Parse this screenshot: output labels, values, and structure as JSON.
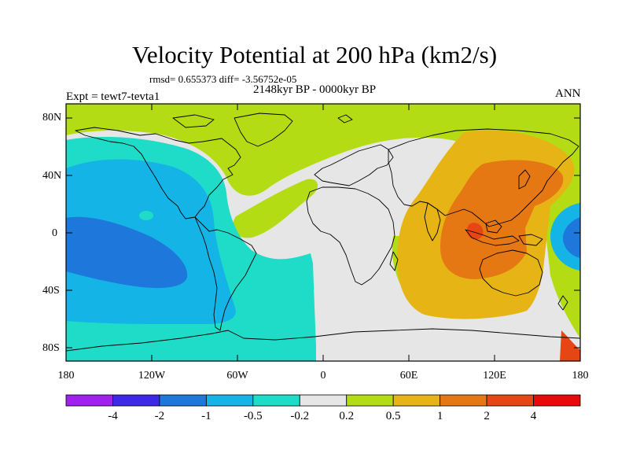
{
  "map": {
    "title": "Velocity Potential at 200 hPa (km2/s)",
    "stats": "rmsd= 0.655373 diff= -3.56752e-05",
    "period": "2148kyr BP - 0000kyr BP",
    "experiment": "Expt = tewt7-tevta1",
    "season": "ANN",
    "lat_labels": [
      "80N",
      "40N",
      "0",
      "40S",
      "80S"
    ],
    "lon_labels": [
      "180",
      "120W",
      "60W",
      "0",
      "60E",
      "120E",
      "180"
    ],
    "projection": "cylindrical equidistant, 180W–180E, 90S–90N"
  },
  "colorbar": {
    "levels": [
      "-4",
      "-2",
      "-1",
      "-0.5",
      "-0.2",
      "0.2",
      "0.5",
      "1",
      "2",
      "4"
    ],
    "colors": [
      "#a020f0",
      "#3c28e6",
      "#1e78dc",
      "#14b4e6",
      "#1edcc8",
      "#e6e6e6",
      "#b4dc14",
      "#e6b414",
      "#e67814",
      "#e64614",
      "#e60a0a"
    ]
  },
  "legend_colors": {
    "land_outline": "#000000",
    "neutral_field": "#e6e6e6"
  }
}
